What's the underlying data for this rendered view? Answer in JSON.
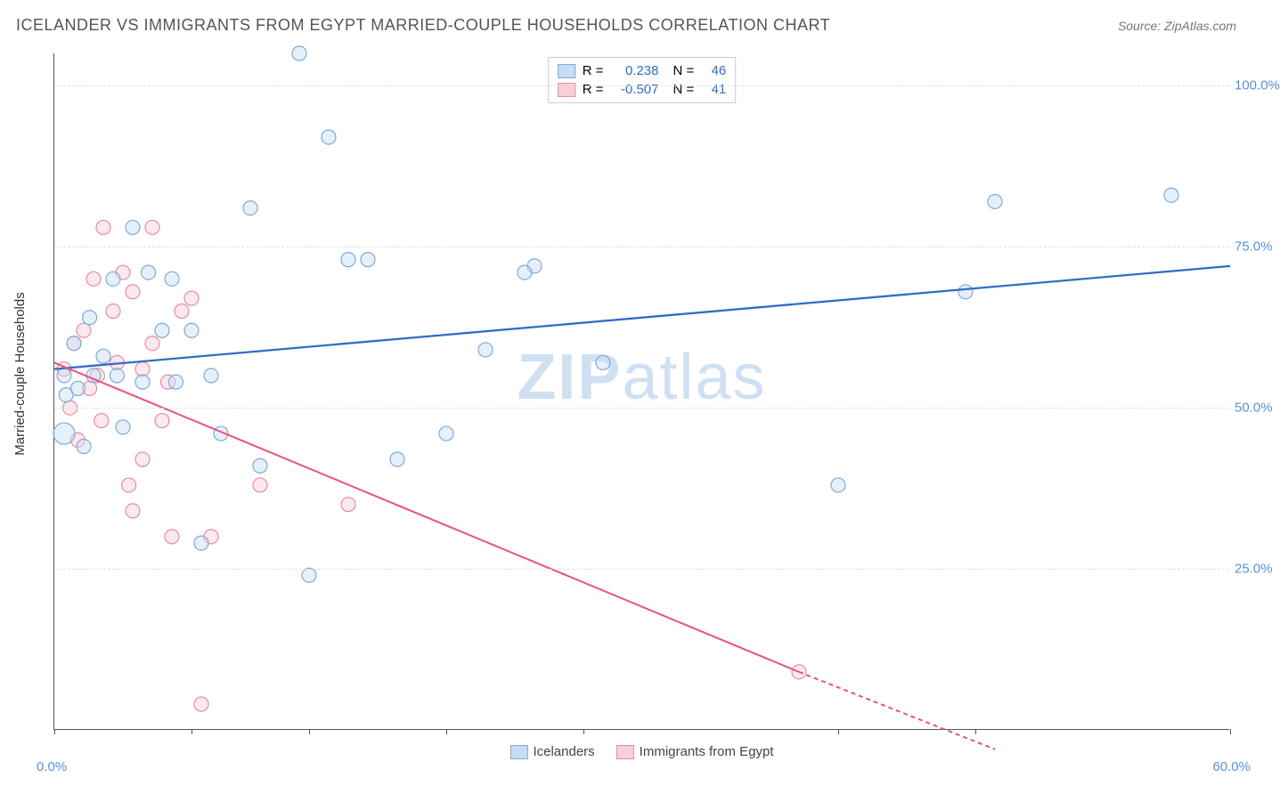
{
  "header": {
    "title": "ICELANDER VS IMMIGRANTS FROM EGYPT MARRIED-COUPLE HOUSEHOLDS CORRELATION CHART",
    "source": "Source: ZipAtlas.com"
  },
  "chart": {
    "type": "scatter",
    "ylabel": "Married-couple Households",
    "xlim": [
      0,
      60
    ],
    "ylim": [
      0,
      105
    ],
    "xtick_positions": [
      0,
      7,
      13,
      20,
      27,
      40,
      47,
      60
    ],
    "xaxis_label_left": "0.0%",
    "xaxis_label_right": "60.0%",
    "ytick_labels": [
      "25.0%",
      "50.0%",
      "75.0%",
      "100.0%"
    ],
    "ytick_values": [
      25,
      50,
      75,
      100
    ],
    "grid_color": "#e0e0e0",
    "background_color": "#ffffff",
    "watermark_text_bold": "ZIP",
    "watermark_text_light": "atlas",
    "watermark_color": "#cfe0f2",
    "series": {
      "icelanders": {
        "label": "Icelanders",
        "fill": "#c8ddf3",
        "stroke": "#7eaad9",
        "fill_opacity": 0.45,
        "marker_radius": 8,
        "r_value": "0.238",
        "n_value": "46",
        "regression": {
          "x1": 0,
          "y1": 56,
          "x2": 60,
          "y2": 72,
          "stroke": "#2f6ec4",
          "width": 2.3
        },
        "points": [
          {
            "x": 0.5,
            "y": 46,
            "r": 12
          },
          {
            "x": 0.5,
            "y": 55,
            "r": 8
          },
          {
            "x": 0.6,
            "y": 52,
            "r": 8
          },
          {
            "x": 1.0,
            "y": 60,
            "r": 8
          },
          {
            "x": 1.2,
            "y": 53,
            "r": 8
          },
          {
            "x": 1.5,
            "y": 44,
            "r": 8
          },
          {
            "x": 1.8,
            "y": 64,
            "r": 8
          },
          {
            "x": 2.0,
            "y": 55,
            "r": 8
          },
          {
            "x": 2.5,
            "y": 58,
            "r": 8
          },
          {
            "x": 3.0,
            "y": 70,
            "r": 8
          },
          {
            "x": 3.2,
            "y": 55,
            "r": 8
          },
          {
            "x": 3.5,
            "y": 47,
            "r": 8
          },
          {
            "x": 4.0,
            "y": 78,
            "r": 8
          },
          {
            "x": 4.5,
            "y": 54,
            "r": 8
          },
          {
            "x": 4.8,
            "y": 71,
            "r": 8
          },
          {
            "x": 5.5,
            "y": 62,
            "r": 8
          },
          {
            "x": 6.0,
            "y": 70,
            "r": 8
          },
          {
            "x": 6.2,
            "y": 54,
            "r": 8
          },
          {
            "x": 7.0,
            "y": 62,
            "r": 8
          },
          {
            "x": 7.5,
            "y": 29,
            "r": 8
          },
          {
            "x": 8.0,
            "y": 55,
            "r": 8
          },
          {
            "x": 8.5,
            "y": 46,
            "r": 8
          },
          {
            "x": 10.0,
            "y": 81,
            "r": 8
          },
          {
            "x": 10.5,
            "y": 41,
            "r": 8
          },
          {
            "x": 12.5,
            "y": 105,
            "r": 8
          },
          {
            "x": 13.0,
            "y": 24,
            "r": 8
          },
          {
            "x": 14.0,
            "y": 92,
            "r": 8
          },
          {
            "x": 15.0,
            "y": 73,
            "r": 8
          },
          {
            "x": 16.0,
            "y": 73,
            "r": 8
          },
          {
            "x": 17.5,
            "y": 42,
            "r": 8
          },
          {
            "x": 20.0,
            "y": 46,
            "r": 8
          },
          {
            "x": 22.0,
            "y": 59,
            "r": 8
          },
          {
            "x": 24.5,
            "y": 72,
            "r": 8
          },
          {
            "x": 24.0,
            "y": 71,
            "r": 8
          },
          {
            "x": 28.0,
            "y": 57,
            "r": 8
          },
          {
            "x": 40.0,
            "y": 38,
            "r": 8
          },
          {
            "x": 46.5,
            "y": 68,
            "r": 8
          },
          {
            "x": 48.0,
            "y": 82,
            "r": 8
          },
          {
            "x": 57.0,
            "y": 83,
            "r": 8
          }
        ]
      },
      "egypt": {
        "label": "Immigrants from Egypt",
        "fill": "#f7cfd8",
        "stroke": "#e98aa4",
        "fill_opacity": 0.45,
        "marker_radius": 8,
        "r_value": "-0.507",
        "n_value": "41",
        "regression": {
          "x1": 0,
          "y1": 57,
          "x2": 38,
          "y2": 9,
          "x2_dash": 48,
          "y2_dash": -3,
          "stroke": "#e55384",
          "width": 2
        },
        "points": [
          {
            "x": 0.5,
            "y": 56,
            "r": 8
          },
          {
            "x": 0.8,
            "y": 50,
            "r": 8
          },
          {
            "x": 1.0,
            "y": 60,
            "r": 8
          },
          {
            "x": 1.2,
            "y": 45,
            "r": 8
          },
          {
            "x": 1.5,
            "y": 62,
            "r": 8
          },
          {
            "x": 1.8,
            "y": 53,
            "r": 8
          },
          {
            "x": 2.0,
            "y": 70,
            "r": 8
          },
          {
            "x": 2.2,
            "y": 55,
            "r": 8
          },
          {
            "x": 2.4,
            "y": 48,
            "r": 8
          },
          {
            "x": 2.5,
            "y": 78,
            "r": 8
          },
          {
            "x": 3.0,
            "y": 65,
            "r": 8
          },
          {
            "x": 3.2,
            "y": 57,
            "r": 8
          },
          {
            "x": 3.5,
            "y": 71,
            "r": 8
          },
          {
            "x": 3.8,
            "y": 38,
            "r": 8
          },
          {
            "x": 4.0,
            "y": 68,
            "r": 8
          },
          {
            "x": 4.0,
            "y": 34,
            "r": 8
          },
          {
            "x": 4.5,
            "y": 56,
            "r": 8
          },
          {
            "x": 4.5,
            "y": 42,
            "r": 8
          },
          {
            "x": 5.0,
            "y": 60,
            "r": 8
          },
          {
            "x": 5.0,
            "y": 78,
            "r": 8
          },
          {
            "x": 5.5,
            "y": 48,
            "r": 8
          },
          {
            "x": 5.8,
            "y": 54,
            "r": 8
          },
          {
            "x": 6.0,
            "y": 30,
            "r": 8
          },
          {
            "x": 6.5,
            "y": 65,
            "r": 8
          },
          {
            "x": 7.0,
            "y": 67,
            "r": 8
          },
          {
            "x": 7.5,
            "y": 4,
            "r": 8
          },
          {
            "x": 8.0,
            "y": 30,
            "r": 8
          },
          {
            "x": 10.5,
            "y": 38,
            "r": 8
          },
          {
            "x": 15.0,
            "y": 35,
            "r": 8
          },
          {
            "x": 38.0,
            "y": 9,
            "r": 8
          }
        ]
      }
    },
    "legend_top": {
      "r_label": "R =",
      "n_label": "N ="
    }
  }
}
